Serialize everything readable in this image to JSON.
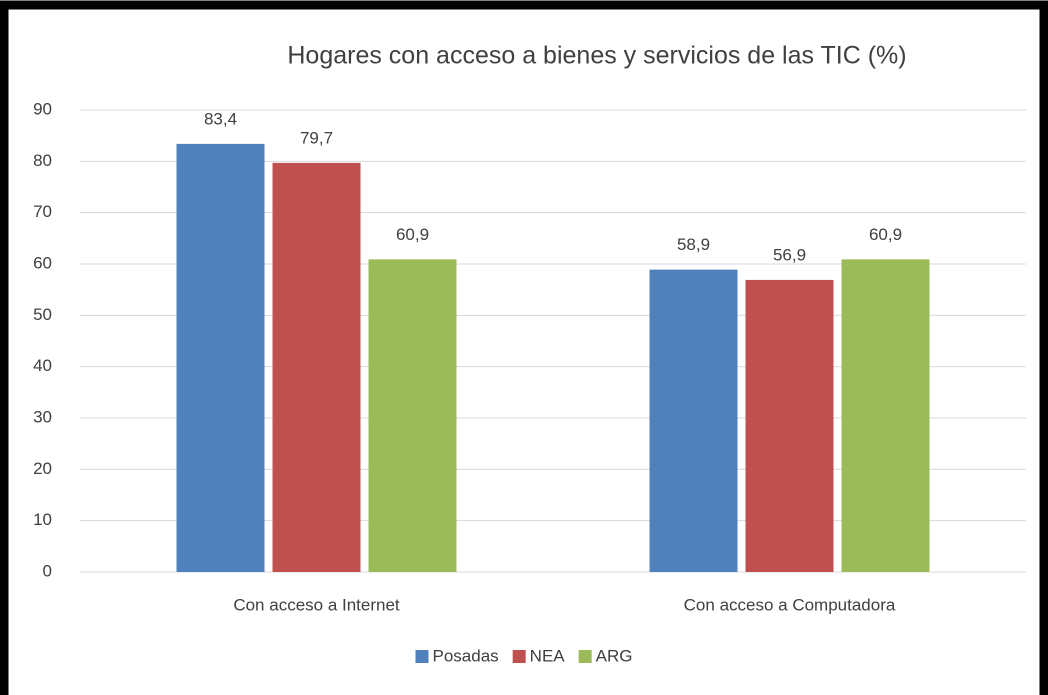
{
  "chart_data": {
    "type": "bar",
    "title": "Hogares con acceso a bienes y servicios de las TIC (%)",
    "categories": [
      "Con acceso a Internet",
      "Con acceso a Computadora"
    ],
    "series": [
      {
        "name": "Posadas",
        "color": "#4f81bd",
        "values": [
          83.4,
          58.9
        ],
        "value_labels": [
          "83,4",
          "58,9"
        ]
      },
      {
        "name": "NEA",
        "color": "#c0504d",
        "values": [
          79.7,
          56.9
        ],
        "value_labels": [
          "79,7",
          "56,9"
        ]
      },
      {
        "name": "ARG",
        "color": "#9bbb59",
        "values": [
          60.9,
          60.9
        ],
        "value_labels": [
          "60,9",
          "60,9"
        ]
      }
    ],
    "ylim": [
      0,
      90
    ],
    "yticks": [
      0,
      10,
      20,
      30,
      40,
      50,
      60,
      70,
      80,
      90
    ],
    "grid": true,
    "legend": "bottom"
  }
}
